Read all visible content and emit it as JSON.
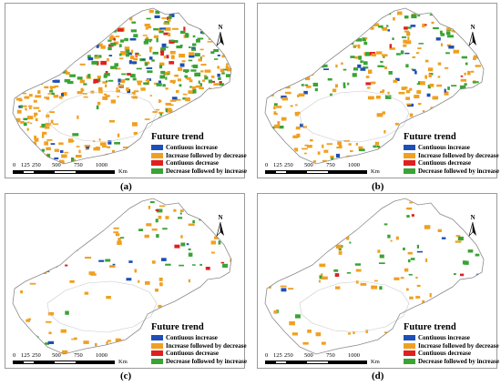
{
  "legend": {
    "title": "Future trend",
    "items": [
      {
        "label": "Contiuous increase",
        "color": "#1f4fb4"
      },
      {
        "label": "Increase followed by decrease",
        "color": "#f0a020"
      },
      {
        "label": "Contiuous decrease",
        "color": "#e01f1f"
      },
      {
        "label": "Decrease followed by increase",
        "color": "#3aa335"
      }
    ]
  },
  "scale_bar": {
    "ticks": [
      "0",
      "125",
      "250",
      "500",
      "750",
      "1000"
    ],
    "unit": "Km"
  },
  "north_label": "N",
  "panels": [
    {
      "id": "a",
      "caption": "(a)",
      "density": 1.0
    },
    {
      "id": "b",
      "caption": "(b)",
      "density": 0.55
    },
    {
      "id": "c",
      "caption": "(c)",
      "density": 0.22
    },
    {
      "id": "d",
      "caption": "(d)",
      "density": 0.2
    }
  ]
}
